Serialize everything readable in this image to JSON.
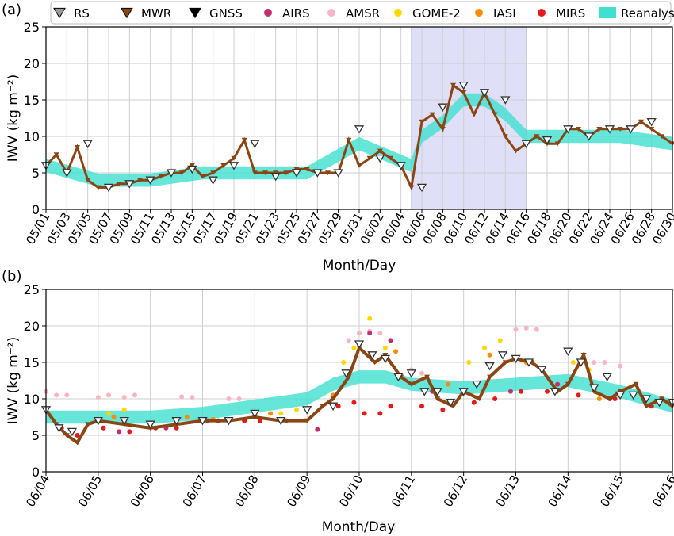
{
  "chart_data": [
    {
      "panel_label": "(a)",
      "type": "scatter",
      "xlabel": "Month/Day",
      "ylabel": "IWV (kg m⁻²)",
      "ylim": [
        0,
        25
      ],
      "yticks": [
        0,
        5,
        10,
        15,
        20,
        25
      ],
      "xlim_days": [
        "05/01",
        "06/30"
      ],
      "xtick_labels": [
        "05/01",
        "05/03",
        "05/05",
        "05/07",
        "05/09",
        "05/11",
        "05/13",
        "05/15",
        "05/17",
        "05/19",
        "05/21",
        "05/23",
        "05/25",
        "05/27",
        "05/29",
        "05/31",
        "06/02",
        "06/04",
        "06/06",
        "06/08",
        "06/10",
        "06/12",
        "06/14",
        "06/16",
        "06/18",
        "06/20",
        "06/22",
        "06/24",
        "06/26",
        "06/28",
        "06/30"
      ],
      "grid": true,
      "highlight_span": {
        "from": "06/05",
        "to": "06/16",
        "color": "#d9d9f7"
      },
      "legend": [
        {
          "name": "RS",
          "marker": "triangle-down-open",
          "color": "#7f7f7f"
        },
        {
          "name": "MWR",
          "marker": "triangle-down",
          "color": "#8b4513"
        },
        {
          "name": "GNSS",
          "marker": "triangle-down",
          "color": "#000000"
        },
        {
          "name": "AIRS",
          "marker": "circle",
          "color": "#c0306e"
        },
        {
          "name": "AMSR",
          "marker": "circle",
          "color": "#f7b6c2"
        },
        {
          "name": "GOME-2",
          "marker": "circle",
          "color": "#ffd700"
        },
        {
          "name": "IASI",
          "marker": "circle",
          "color": "#ff8c00"
        },
        {
          "name": "MIRS",
          "marker": "circle",
          "color": "#e31a1c"
        },
        {
          "name": "Reanalyses",
          "marker": "band",
          "color": "#40e0d0"
        }
      ],
      "legend_position": "top",
      "series": [
        {
          "name": "MWR",
          "x_day": [
            0,
            1,
            2,
            3,
            4,
            5,
            6,
            7,
            8,
            9,
            10,
            11,
            12,
            13,
            14,
            15,
            16,
            17,
            18,
            19,
            20,
            21,
            22,
            23,
            24,
            25,
            26,
            27,
            28,
            29,
            30,
            31,
            32,
            33,
            34,
            35,
            36,
            37,
            38,
            39,
            40,
            41,
            42,
            43,
            44,
            45,
            46,
            47,
            48,
            49,
            50,
            51,
            52,
            53,
            54,
            55,
            56,
            57,
            58,
            59,
            60
          ],
          "y": [
            6,
            7.5,
            5,
            8.5,
            4,
            3,
            3,
            3.5,
            3.5,
            4,
            4,
            4.5,
            5,
            5,
            6,
            4.5,
            5,
            6,
            7,
            9.5,
            5,
            5,
            5,
            5,
            5.5,
            5.5,
            5,
            5,
            5,
            9.5,
            6,
            7,
            8,
            7,
            6,
            3,
            12,
            13,
            11,
            17,
            16,
            13,
            16,
            13,
            10,
            8,
            9,
            10,
            9,
            9,
            11,
            11,
            10,
            11,
            11,
            11,
            11,
            12,
            11,
            10,
            9
          ]
        },
        {
          "name": "RS",
          "x_day": [
            0,
            2,
            4,
            6,
            8,
            10,
            12,
            14,
            16,
            18,
            20,
            22,
            24,
            26,
            28,
            30,
            32,
            34,
            36,
            38,
            40,
            42,
            44,
            46,
            48,
            50,
            52,
            54,
            56,
            58
          ],
          "y": [
            6,
            5,
            9,
            3,
            3.5,
            4,
            5,
            5.5,
            4,
            6,
            9,
            4.5,
            5,
            5,
            5,
            11,
            7,
            6,
            3,
            14,
            17,
            16,
            15,
            9,
            9.5,
            11,
            10,
            11,
            11,
            12
          ]
        },
        {
          "name": "Reanalyses",
          "x_day": [
            0,
            5,
            10,
            15,
            20,
            25,
            30,
            35,
            36,
            38,
            40,
            42,
            44,
            46,
            50,
            55,
            60
          ],
          "y": [
            6,
            4,
            4,
            5,
            5,
            5,
            9,
            6,
            10,
            12,
            15,
            15,
            13,
            10,
            10,
            10,
            9
          ]
        }
      ]
    },
    {
      "panel_label": "(b)",
      "type": "scatter",
      "xlabel": "Month/Day",
      "ylabel": "IWV (kg m⁻²)",
      "ylim": [
        0,
        25
      ],
      "yticks": [
        0,
        5,
        10,
        15,
        20,
        25
      ],
      "xtick_labels": [
        "06/04",
        "06/05",
        "06/06",
        "06/07",
        "06/08",
        "06/09",
        "06/10",
        "06/11",
        "06/12",
        "06/13",
        "06/14",
        "06/15",
        "06/16"
      ],
      "grid": true,
      "series": [
        {
          "name": "MWR",
          "x_day": [
            0,
            0.2,
            0.4,
            0.6,
            0.8,
            1,
            1.5,
            2,
            2.5,
            3,
            3.5,
            4,
            4.5,
            5,
            5.3,
            5.5,
            5.8,
            6,
            6.3,
            6.5,
            6.8,
            7,
            7.3,
            7.5,
            7.8,
            8,
            8.3,
            8.5,
            8.8,
            9,
            9.3,
            9.5,
            9.8,
            10,
            10.3,
            10.5,
            10.8,
            11,
            11.3,
            11.5,
            11.8,
            12
          ],
          "y": [
            8.5,
            6.5,
            5,
            4,
            6.5,
            7,
            6.5,
            6,
            6.5,
            7,
            7,
            7.5,
            7,
            7,
            9,
            10,
            13,
            17,
            15,
            16,
            13,
            12,
            13,
            10,
            9,
            11,
            10,
            13,
            15,
            15.5,
            15,
            14,
            11,
            12,
            16,
            11,
            10,
            11,
            12,
            9,
            10,
            9
          ]
        },
        {
          "name": "RS",
          "x_day": [
            0,
            0.25,
            0.5,
            1,
            1.5,
            2,
            2.5,
            3,
            3.5,
            4,
            4.5,
            5,
            5.5,
            5.75,
            6,
            6.25,
            6.5,
            6.75,
            7,
            7.25,
            7.5,
            7.75,
            8,
            8.25,
            8.5,
            8.75,
            9,
            9.25,
            9.5,
            9.75,
            10,
            10.25,
            10.5,
            10.75,
            11,
            11.25,
            11.5,
            11.75,
            12
          ],
          "y": [
            8.5,
            6,
            5.5,
            7,
            7,
            6.5,
            7,
            7,
            7,
            8,
            7,
            8.5,
            9,
            13.5,
            17.5,
            16,
            15.5,
            13,
            13.5,
            11,
            11,
            9.5,
            11,
            12,
            14.5,
            16,
            15.5,
            15,
            14,
            11,
            16.5,
            15,
            11.5,
            13,
            10.5,
            10.5,
            10,
            9.5,
            9.5
          ]
        },
        {
          "name": "Reanalyses",
          "x_day": [
            0,
            1,
            2,
            3,
            4,
            5,
            5.5,
            6,
            6.5,
            7,
            8,
            9,
            10,
            11,
            11.5,
            12
          ],
          "y": [
            7.5,
            7.5,
            7.5,
            8,
            9,
            10,
            12,
            13,
            13,
            12,
            11.5,
            12,
            12.5,
            11,
            10,
            9
          ]
        },
        {
          "name": "AMSR",
          "x_day": [
            0,
            0.2,
            0.4,
            1,
            1.2,
            1.5,
            1.7,
            2.6,
            2.8,
            3.5,
            3.7,
            5.8,
            6,
            6.2,
            6.4,
            7,
            7.2,
            9,
            9.2,
            9.4,
            10.5,
            10.7,
            11
          ],
          "y": [
            11,
            10.5,
            10.5,
            10.2,
            10.5,
            10.2,
            10.5,
            10.3,
            10.2,
            10,
            10,
            18,
            19,
            19.3,
            19,
            14,
            13.5,
            19.5,
            19.7,
            19.5,
            15,
            15,
            14.5
          ]
        },
        {
          "name": "GOME-2",
          "x_day": [
            1.2,
            1.5,
            4.5,
            4.8,
            5.7,
            5.9,
            6.2,
            6.5,
            8.1,
            8.4,
            8.7,
            10.1,
            10.4
          ],
          "y": [
            8,
            8.5,
            8,
            8.5,
            15,
            17,
            21,
            17,
            15,
            17,
            18,
            15,
            14
          ]
        },
        {
          "name": "IASI",
          "x_day": [
            1,
            1.3,
            2.7,
            3.2,
            4.3,
            5.5,
            6.2,
            6.7,
            7.7,
            8.5,
            9.2,
            10.6
          ],
          "y": [
            7,
            7.5,
            7.5,
            7.2,
            8,
            10.5,
            16,
            16.5,
            12,
            16,
            15,
            10
          ]
        },
        {
          "name": "MIRS",
          "x_day": [
            0.3,
            0.6,
            1.1,
            1.6,
            2.1,
            2.5,
            3.3,
            3.8,
            4.1,
            5.6,
            5.9,
            6.1,
            6.4,
            6.6,
            7.2,
            7.6,
            8.2,
            8.6,
            9.1,
            9.6,
            10.2,
            10.9,
            11.6
          ],
          "y": [
            6,
            5,
            6,
            5.5,
            6,
            6,
            7,
            7,
            7,
            9,
            9.5,
            8,
            8,
            9,
            9,
            8.5,
            9.5,
            10,
            11,
            11,
            10.5,
            10,
            9
          ]
        },
        {
          "name": "AIRS",
          "x_day": [
            0.5,
            1.4,
            2.3,
            3.1,
            4.6,
            5.2,
            6.2,
            6.6,
            7.4,
            8.9,
            9.8,
            10.8
          ],
          "y": [
            5.5,
            5.5,
            6,
            7,
            7,
            5.8,
            19,
            18,
            11,
            11,
            12,
            10
          ]
        }
      ]
    }
  ]
}
